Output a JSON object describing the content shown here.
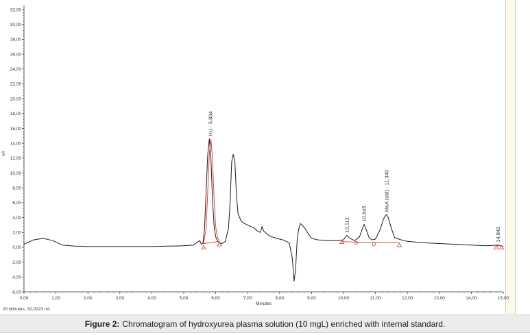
{
  "caption": {
    "label": "Figure 2:",
    "text": "Chromatogram of hydroxyurea plasma solution (10 mgL) enriched with internal standard."
  },
  "status_text": "20 Minutes, 32,0223 nA",
  "colors": {
    "trace": "#1a1a1a",
    "integration": "#e03030",
    "axis": "#333333"
  },
  "chart_data": {
    "type": "line",
    "xlabel": "Minutes",
    "ylabel": "nA",
    "xlim": [
      0,
      15
    ],
    "ylim": [
      -6,
      32
    ],
    "x_ticks": [
      "0,00",
      "1,00",
      "2,00",
      "3,00",
      "4,00",
      "5,00",
      "6,00",
      "7,00",
      "8,00",
      "9,00",
      "10,00",
      "11,00",
      "12,00",
      "13,00",
      "14,00",
      "15,00"
    ],
    "y_ticks": [
      "-6,00",
      "-4,00",
      "-2,00",
      "0,00",
      "2,00",
      "4,00",
      "6,00",
      "8,00",
      "10,00",
      "12,00",
      "14,00",
      "16,00",
      "18,00",
      "20,00",
      "22,00",
      "24,00",
      "26,00",
      "28,00",
      "30,00",
      "32,00"
    ],
    "grid": false,
    "series": [
      {
        "x": [
          0,
          0.3,
          0.6,
          0.9,
          1.2,
          1.6,
          2.0,
          2.5,
          3.0,
          3.5,
          4.0,
          4.5,
          5.0,
          5.3,
          5.5,
          5.55,
          5.6,
          5.65,
          5.7,
          5.75,
          5.8,
          5.85,
          5.9,
          5.95,
          6.0,
          6.05,
          6.1,
          6.2,
          6.3,
          6.4,
          6.45,
          6.5,
          6.55,
          6.6,
          6.65,
          6.7,
          6.8,
          6.9,
          7.0,
          7.2,
          7.3,
          7.4,
          7.45,
          7.5,
          7.6,
          7.7,
          7.9,
          8.1,
          8.3,
          8.4,
          8.45,
          8.5,
          8.55,
          8.6,
          8.65,
          8.7,
          8.8,
          8.9,
          9.0,
          9.2,
          9.5,
          9.8,
          10.0,
          10.1,
          10.2,
          10.35,
          10.5,
          10.6,
          10.645,
          10.7,
          10.8,
          10.9,
          11.0,
          11.15,
          11.25,
          11.3,
          11.349,
          11.4,
          11.5,
          11.6,
          11.8,
          12.0,
          12.5,
          13.0,
          13.5,
          14.0,
          14.5,
          14.842,
          15.0
        ],
        "y": [
          0.4,
          1.0,
          1.2,
          0.9,
          0.3,
          0.15,
          0.1,
          0.1,
          0.1,
          0.1,
          0.1,
          0.15,
          0.2,
          0.3,
          0.9,
          0.4,
          0.5,
          2.5,
          7.5,
          12.5,
          14.6,
          12.0,
          6.5,
          2.8,
          1.4,
          0.9,
          0.6,
          0.5,
          0.8,
          2.5,
          6.0,
          11.5,
          12.5,
          11.5,
          7.0,
          4.5,
          3.5,
          3.2,
          3.0,
          2.6,
          2.2,
          2.0,
          2.8,
          2.2,
          1.8,
          1.5,
          1.2,
          1.0,
          0.6,
          -1.5,
          -4.6,
          -3.0,
          1.0,
          2.5,
          3.2,
          3.0,
          2.5,
          1.8,
          1.2,
          1.0,
          0.9,
          0.9,
          1.0,
          1.6,
          1.2,
          0.9,
          1.4,
          2.6,
          3.1,
          2.5,
          1.3,
          1.0,
          1.1,
          2.4,
          3.8,
          4.2,
          4.4,
          4.0,
          2.5,
          1.3,
          1.0,
          0.8,
          0.6,
          0.5,
          0.4,
          0.3,
          0.2,
          0.3,
          0.1
        ]
      }
    ],
    "integration_segments": [
      {
        "x": [
          5.62,
          5.7,
          5.75,
          5.8,
          5.85,
          5.9,
          5.95,
          6.0,
          6.05,
          6.12
        ],
        "y": [
          0.5,
          2.5,
          7.5,
          12.5,
          14.6,
          12.0,
          6.5,
          2.8,
          1.4,
          0.8
        ]
      },
      {
        "x": [
          5.62,
          6.12
        ],
        "y": [
          0.5,
          0.8
        ]
      },
      {
        "x": [
          9.95,
          10.4,
          10.95,
          11.75
        ],
        "y": [
          0.75,
          0.7,
          0.65,
          0.6
        ]
      },
      {
        "x": [
          14.78,
          14.95
        ],
        "y": [
          0.2,
          0.2
        ]
      }
    ],
    "baseline_markers": [
      {
        "x": 5.62,
        "y": 0.0,
        "shape": "triangle"
      },
      {
        "x": 6.12,
        "y": 0.4,
        "shape": "triangle"
      },
      {
        "x": 9.95,
        "y": 0.75,
        "shape": "triangle"
      },
      {
        "x": 10.4,
        "y": 0.6,
        "shape": "circle"
      },
      {
        "x": 10.95,
        "y": 0.4,
        "shape": "circle"
      },
      {
        "x": 11.75,
        "y": 0.3,
        "shape": "triangle"
      },
      {
        "x": 14.78,
        "y": 0.0,
        "shape": "triangle"
      },
      {
        "x": 14.95,
        "y": 0.0,
        "shape": "triangle"
      }
    ],
    "peak_labels": [
      {
        "text": "HU - 5,834",
        "x": 5.834,
        "y": 14.6
      },
      {
        "text": "10,112",
        "x": 10.112,
        "y": 1.6
      },
      {
        "text": "10,645",
        "x": 10.645,
        "y": 3.1
      },
      {
        "text": "MeA (std) - 11,349",
        "x": 11.349,
        "y": 4.4
      },
      {
        "text": "14,842",
        "x": 14.842,
        "y": 0.3
      }
    ]
  }
}
